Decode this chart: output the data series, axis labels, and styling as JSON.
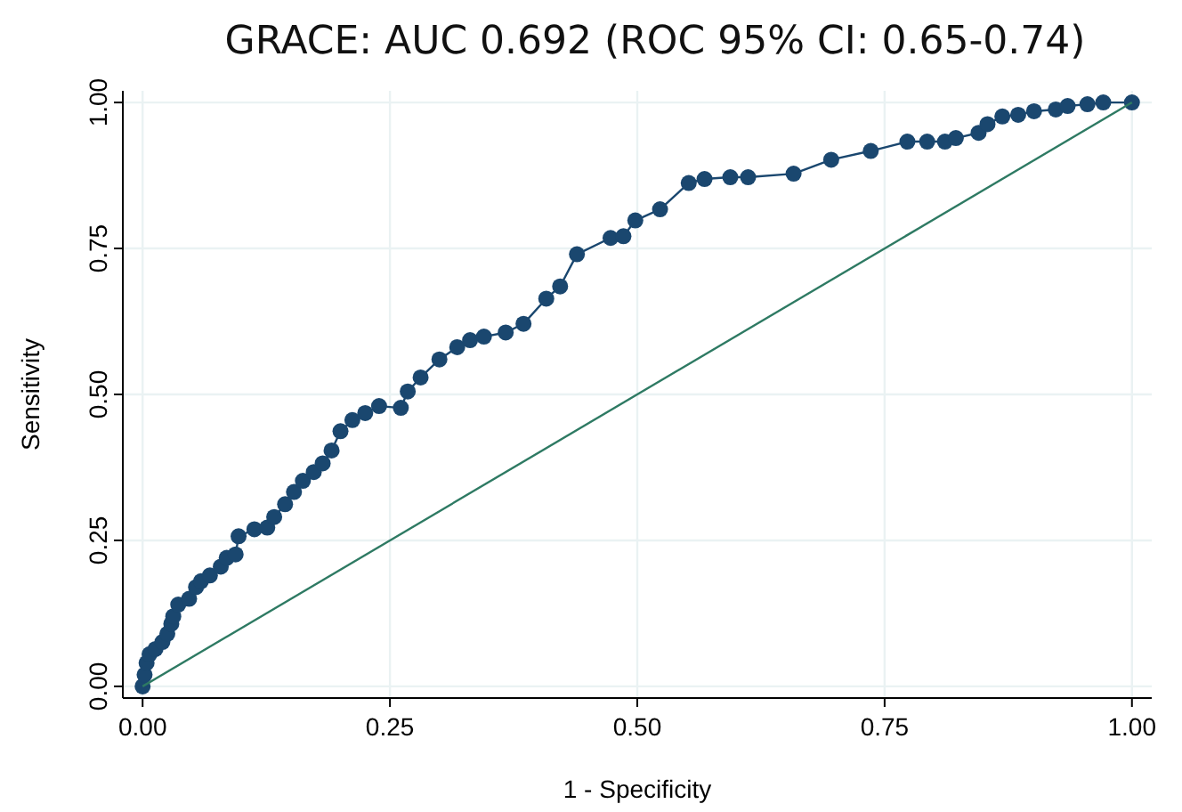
{
  "chart_data": {
    "type": "line",
    "title": "GRACE: AUC 0.692 (ROC 95% CI: 0.65-0.74)",
    "xlabel": "1 - Specificity",
    "ylabel": "Sensitivity",
    "xlim": [
      -0.02,
      1.02
    ],
    "ylim": [
      -0.02,
      1.02
    ],
    "xticks": [
      {
        "value": 0,
        "label": "0.00"
      },
      {
        "value": 0.25,
        "label": "0.25"
      },
      {
        "value": 0.5,
        "label": "0.50"
      },
      {
        "value": 0.75,
        "label": "0.75"
      },
      {
        "value": 1,
        "label": "1.00"
      }
    ],
    "yticks": [
      {
        "value": 0,
        "label": "0.00"
      },
      {
        "value": 0.25,
        "label": "0.25"
      },
      {
        "value": 0.5,
        "label": "0.50"
      },
      {
        "value": 0.75,
        "label": "0.75"
      },
      {
        "value": 1,
        "label": "1.00"
      }
    ],
    "grid": true,
    "series": [
      {
        "color": "#1a476f",
        "marker": "circle",
        "x": [
          0,
          0.002,
          0.004,
          0.007,
          0.013,
          0.02,
          0.025,
          0.029,
          0.031,
          0.036,
          0.047,
          0.054,
          0.059,
          0.068,
          0.079,
          0.085,
          0.094,
          0.097,
          0.113,
          0.126,
          0.133,
          0.144,
          0.153,
          0.162,
          0.173,
          0.182,
          0.191,
          0.2,
          0.212,
          0.225,
          0.239,
          0.261,
          0.268,
          0.281,
          0.3,
          0.318,
          0.331,
          0.345,
          0.367,
          0.385,
          0.408,
          0.422,
          0.439,
          0.473,
          0.486,
          0.498,
          0.523,
          0.552,
          0.568,
          0.594,
          0.612,
          0.658,
          0.696,
          0.736,
          0.773,
          0.793,
          0.811,
          0.822,
          0.845,
          0.854,
          0.869,
          0.885,
          0.901,
          0.923,
          0.935,
          0.955,
          0.971,
          1
        ],
        "values": [
          0,
          0.02,
          0.04,
          0.055,
          0.064,
          0.076,
          0.09,
          0.107,
          0.12,
          0.14,
          0.15,
          0.17,
          0.18,
          0.19,
          0.205,
          0.22,
          0.226,
          0.257,
          0.269,
          0.272,
          0.29,
          0.312,
          0.333,
          0.352,
          0.367,
          0.382,
          0.404,
          0.437,
          0.456,
          0.468,
          0.48,
          0.477,
          0.505,
          0.529,
          0.56,
          0.581,
          0.593,
          0.599,
          0.606,
          0.621,
          0.664,
          0.685,
          0.74,
          0.768,
          0.771,
          0.798,
          0.817,
          0.862,
          0.869,
          0.872,
          0.872,
          0.878,
          0.902,
          0.917,
          0.933,
          0.933,
          0.933,
          0.939,
          0.948,
          0.963,
          0.976,
          0.979,
          0.985,
          0.988,
          0.994,
          0.997,
          1,
          1
        ]
      },
      {
        "color": "#2e7a63",
        "marker": "none",
        "x": [
          0,
          1
        ],
        "values": [
          0,
          1
        ]
      }
    ]
  }
}
